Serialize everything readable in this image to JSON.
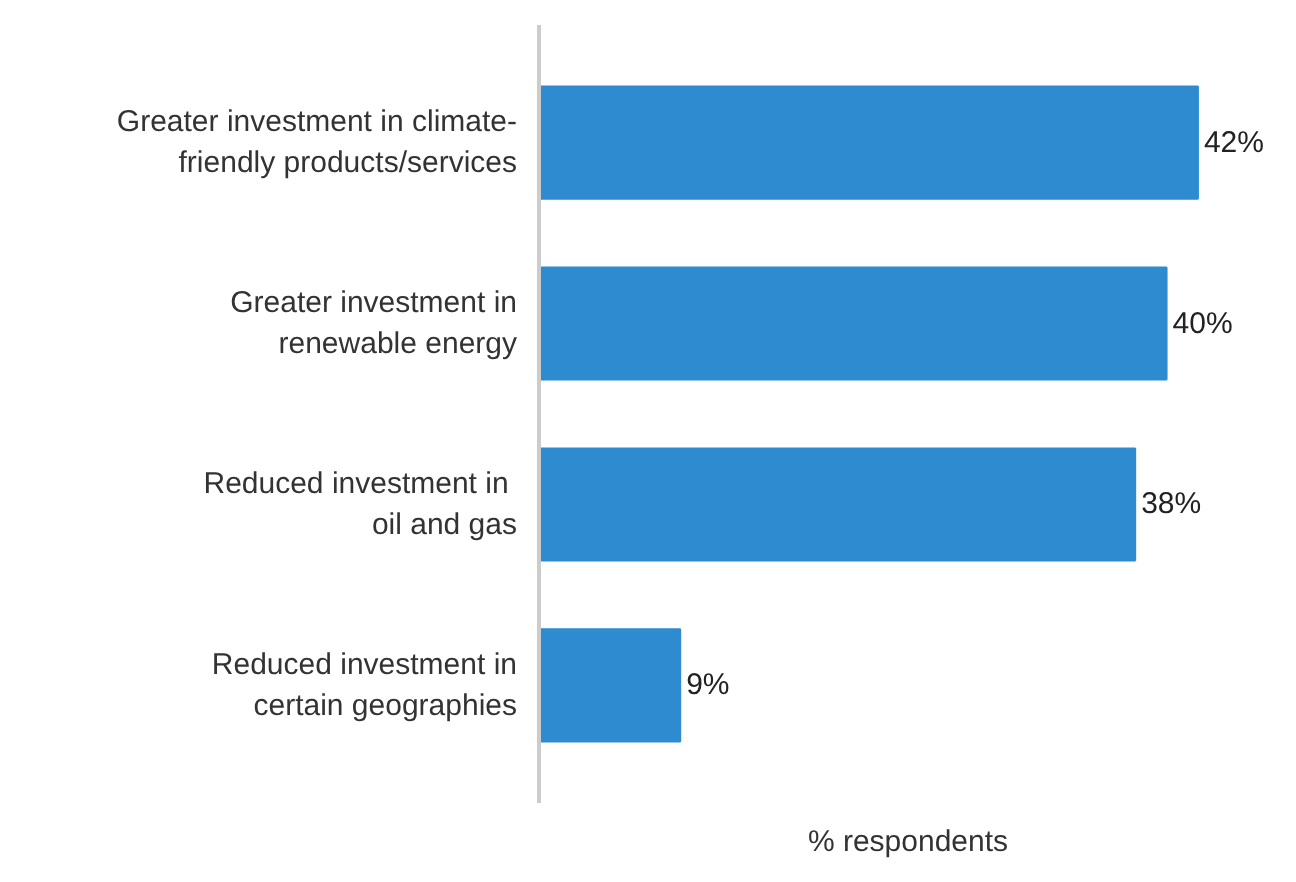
{
  "chart_data": {
    "type": "bar",
    "orientation": "horizontal",
    "xlabel": "% respondents",
    "categories": [
      "Greater investment in climate-\nfriendly products/services",
      "Greater investment in\nrenewable energy",
      "Reduced investment in \noil and gas",
      "Reduced investment in\ncertain geographies"
    ],
    "values": [
      42,
      40,
      38,
      9
    ],
    "value_labels": [
      "42%",
      "40%",
      "38%",
      "9%"
    ],
    "color": "#2e8bcf",
    "tick_labels": "y",
    "grid": false
  }
}
